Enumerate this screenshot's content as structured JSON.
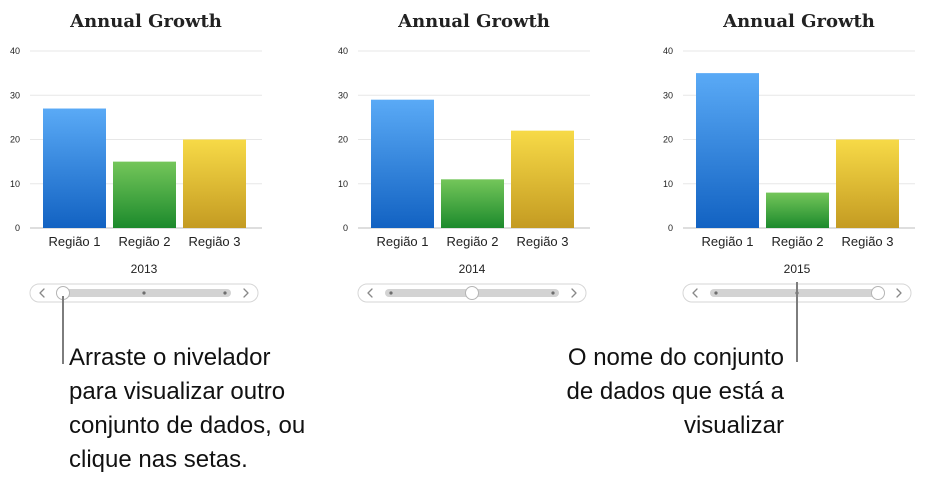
{
  "chart_data": [
    {
      "type": "bar",
      "title": "Annual Growth",
      "categories": [
        "Região 1",
        "Região 2",
        "Região 3"
      ],
      "values": [
        27,
        15,
        20
      ],
      "ylim": [
        0,
        40
      ],
      "yticks": [
        0,
        10,
        20,
        30,
        40
      ],
      "dataset_label": "2013",
      "slider_position": 0,
      "grid": true
    },
    {
      "type": "bar",
      "title": "Annual Growth",
      "categories": [
        "Região 1",
        "Região 2",
        "Região 3"
      ],
      "values": [
        29,
        11,
        22
      ],
      "ylim": [
        0,
        40
      ],
      "yticks": [
        0,
        10,
        20,
        30,
        40
      ],
      "dataset_label": "2014",
      "slider_position": 0.5,
      "grid": true
    },
    {
      "type": "bar",
      "title": "Annual Growth",
      "categories": [
        "Região 1",
        "Região 2",
        "Região 3"
      ],
      "values": [
        35,
        8,
        20
      ],
      "ylim": [
        0,
        40
      ],
      "yticks": [
        0,
        10,
        20,
        30,
        40
      ],
      "dataset_label": "2015",
      "slider_position": 1,
      "grid": true
    }
  ],
  "colors": {
    "bar_1_top": "#5aaaf6",
    "bar_1_bottom": "#1262c2",
    "bar_2_top": "#74c65a",
    "bar_2_bottom": "#1c8a2c",
    "bar_3_top": "#f7da47",
    "bar_3_bottom": "#c49b22",
    "gridline": "#e7e7e7"
  },
  "callouts": {
    "slider_text": "Arraste o nivelador\npara visualizar outro\nconjunto de dados, ou\nclique nas setas.",
    "dataset_text": "O nome do conjunto\nde dados que está a\nvisualizar"
  }
}
